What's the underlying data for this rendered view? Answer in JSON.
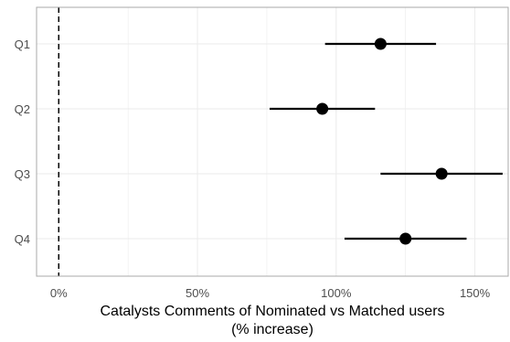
{
  "chart_data": {
    "type": "scatter",
    "subtype": "dot-and-whisker",
    "orientation": "horizontal",
    "categories": [
      "Q1",
      "Q2",
      "Q3",
      "Q4"
    ],
    "series": [
      {
        "points": [
          {
            "category": "Q1",
            "estimate": 116,
            "lower": 96,
            "upper": 136
          },
          {
            "category": "Q2",
            "estimate": 95,
            "lower": 76,
            "upper": 114
          },
          {
            "category": "Q3",
            "estimate": 138,
            "lower": 116,
            "upper": 160
          },
          {
            "category": "Q4",
            "estimate": 125,
            "lower": 103,
            "upper": 147
          }
        ]
      }
    ],
    "xlabel_lines": [
      "Catalysts Comments of Nominated vs Matched users",
      "(% increase)"
    ],
    "xlim": [
      -8,
      162
    ],
    "x_ticks": [
      {
        "value": 0,
        "label": "0%"
      },
      {
        "value": 50,
        "label": "50%"
      },
      {
        "value": 100,
        "label": "100%"
      },
      {
        "value": 150,
        "label": "150%"
      }
    ],
    "reference_line": {
      "value": 0,
      "style": "dashed"
    },
    "grid": true,
    "colors": {
      "points": "#000000",
      "grid": "#ebebeb",
      "frame": "#a8a8a8"
    }
  }
}
